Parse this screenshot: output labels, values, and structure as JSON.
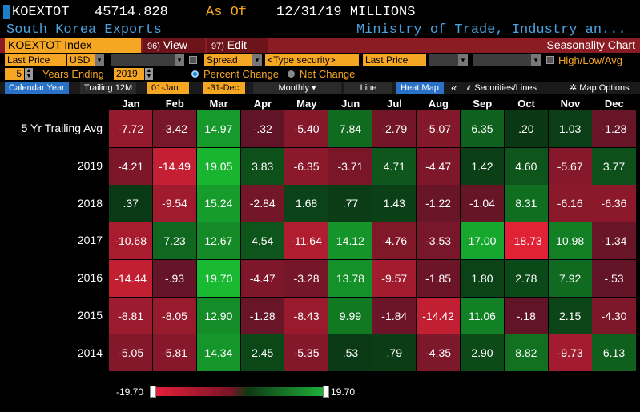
{
  "header": {
    "ticker": "KOEXTOT",
    "price": "45714.828",
    "as_of_label": "As Of",
    "as_of_date": "12/31/19",
    "units": "MILLIONS",
    "description": "South Korea Exports",
    "source": "Ministry of Trade, Industry an..."
  },
  "menubar": {
    "security": "KOEXTOT Index",
    "view_num": "96)",
    "view_label": "View",
    "edit_num": "97)",
    "edit_label": "Edit",
    "title": "Seasonality Chart"
  },
  "controls": {
    "field": "Last Price",
    "currency": "USD",
    "mode": "Spread",
    "type_security": "<Type security>",
    "field2": "Last Price",
    "high_low_avg": "High/Low/Avg",
    "years": "5",
    "years_label": "Years Ending",
    "year_end": "2019",
    "percent_change": "Percent Change",
    "net_change": "Net Change"
  },
  "toolbar": {
    "calendar_year": "Calendar Year",
    "trailing": "Trailing 12M",
    "start": "01-Jan",
    "dash": "-",
    "end": "31-Dec",
    "frequency": "Monthly",
    "line": "Line",
    "heat_map": "Heat Map",
    "collapse": "«",
    "securities_lines": "Securities/Lines",
    "map_options": "Map Options"
  },
  "colors": {
    "red_max": "#e8213a",
    "green_max": "#1fb53a",
    "accent_orange": "#f5a623",
    "menu_red": "#8c1c24"
  },
  "chart_data": {
    "type": "heatmap",
    "title": "Seasonality Chart",
    "columns": [
      "Jan",
      "Feb",
      "Mar",
      "Apr",
      "May",
      "Jun",
      "Jul",
      "Aug",
      "Sep",
      "Oct",
      "Nov",
      "Dec"
    ],
    "rows": [
      {
        "label": "5 Yr Trailing Avg",
        "values": [
          -7.72,
          -3.42,
          14.97,
          -0.32,
          -5.4,
          7.84,
          -2.79,
          -5.07,
          6.35,
          0.2,
          1.03,
          -1.28
        ],
        "display": [
          "-7.72",
          "-3.42",
          "14.97",
          "-.32",
          "-5.40",
          "7.84",
          "-2.79",
          "-5.07",
          "6.35",
          ".20",
          "1.03",
          "-1.28"
        ]
      },
      {
        "label": "2019",
        "values": [
          -4.21,
          -14.49,
          19.05,
          3.83,
          -6.35,
          -3.71,
          4.71,
          -4.47,
          1.42,
          4.6,
          -5.67,
          3.77
        ],
        "display": [
          "-4.21",
          "-14.49",
          "19.05",
          "3.83",
          "-6.35",
          "-3.71",
          "4.71",
          "-4.47",
          "1.42",
          "4.60",
          "-5.67",
          "3.77"
        ]
      },
      {
        "label": "2018",
        "values": [
          0.37,
          -9.54,
          15.24,
          -2.84,
          1.68,
          0.77,
          1.43,
          -1.22,
          -1.04,
          8.31,
          -6.16,
          -6.36
        ],
        "display": [
          ".37",
          "-9.54",
          "15.24",
          "-2.84",
          "1.68",
          ".77",
          "1.43",
          "-1.22",
          "-1.04",
          "8.31",
          "-6.16",
          "-6.36"
        ]
      },
      {
        "label": "2017",
        "values": [
          -10.68,
          7.23,
          12.67,
          4.54,
          -11.64,
          14.12,
          -4.76,
          -3.53,
          17.0,
          -18.73,
          10.98,
          -1.34
        ],
        "display": [
          "-10.68",
          "7.23",
          "12.67",
          "4.54",
          "-11.64",
          "14.12",
          "-4.76",
          "-3.53",
          "17.00",
          "-18.73",
          "10.98",
          "-1.34"
        ]
      },
      {
        "label": "2016",
        "values": [
          -14.44,
          -0.93,
          19.7,
          -4.47,
          -3.28,
          13.78,
          -9.57,
          -1.85,
          1.8,
          2.78,
          7.92,
          -0.53
        ],
        "display": [
          "-14.44",
          "-.93",
          "19.70",
          "-4.47",
          "-3.28",
          "13.78",
          "-9.57",
          "-1.85",
          "1.80",
          "2.78",
          "7.92",
          "-.53"
        ]
      },
      {
        "label": "2015",
        "values": [
          -8.81,
          -8.05,
          12.9,
          -1.28,
          -8.43,
          9.99,
          -1.84,
          -14.42,
          11.06,
          -0.18,
          2.15,
          -4.3
        ],
        "display": [
          "-8.81",
          "-8.05",
          "12.90",
          "-1.28",
          "-8.43",
          "9.99",
          "-1.84",
          "-14.42",
          "11.06",
          "-.18",
          "2.15",
          "-4.30"
        ]
      },
      {
        "label": "2014",
        "values": [
          -5.05,
          -5.81,
          14.34,
          2.45,
          -5.35,
          0.53,
          0.79,
          -4.35,
          2.9,
          8.82,
          -9.73,
          6.13
        ],
        "display": [
          "-5.05",
          "-5.81",
          "14.34",
          "2.45",
          "-5.35",
          ".53",
          ".79",
          "-4.35",
          "2.90",
          "8.82",
          "-9.73",
          "6.13"
        ]
      }
    ],
    "scale_min": -19.7,
    "scale_max": 19.7,
    "scale_min_label": "-19.70",
    "scale_max_label": "19.70"
  }
}
